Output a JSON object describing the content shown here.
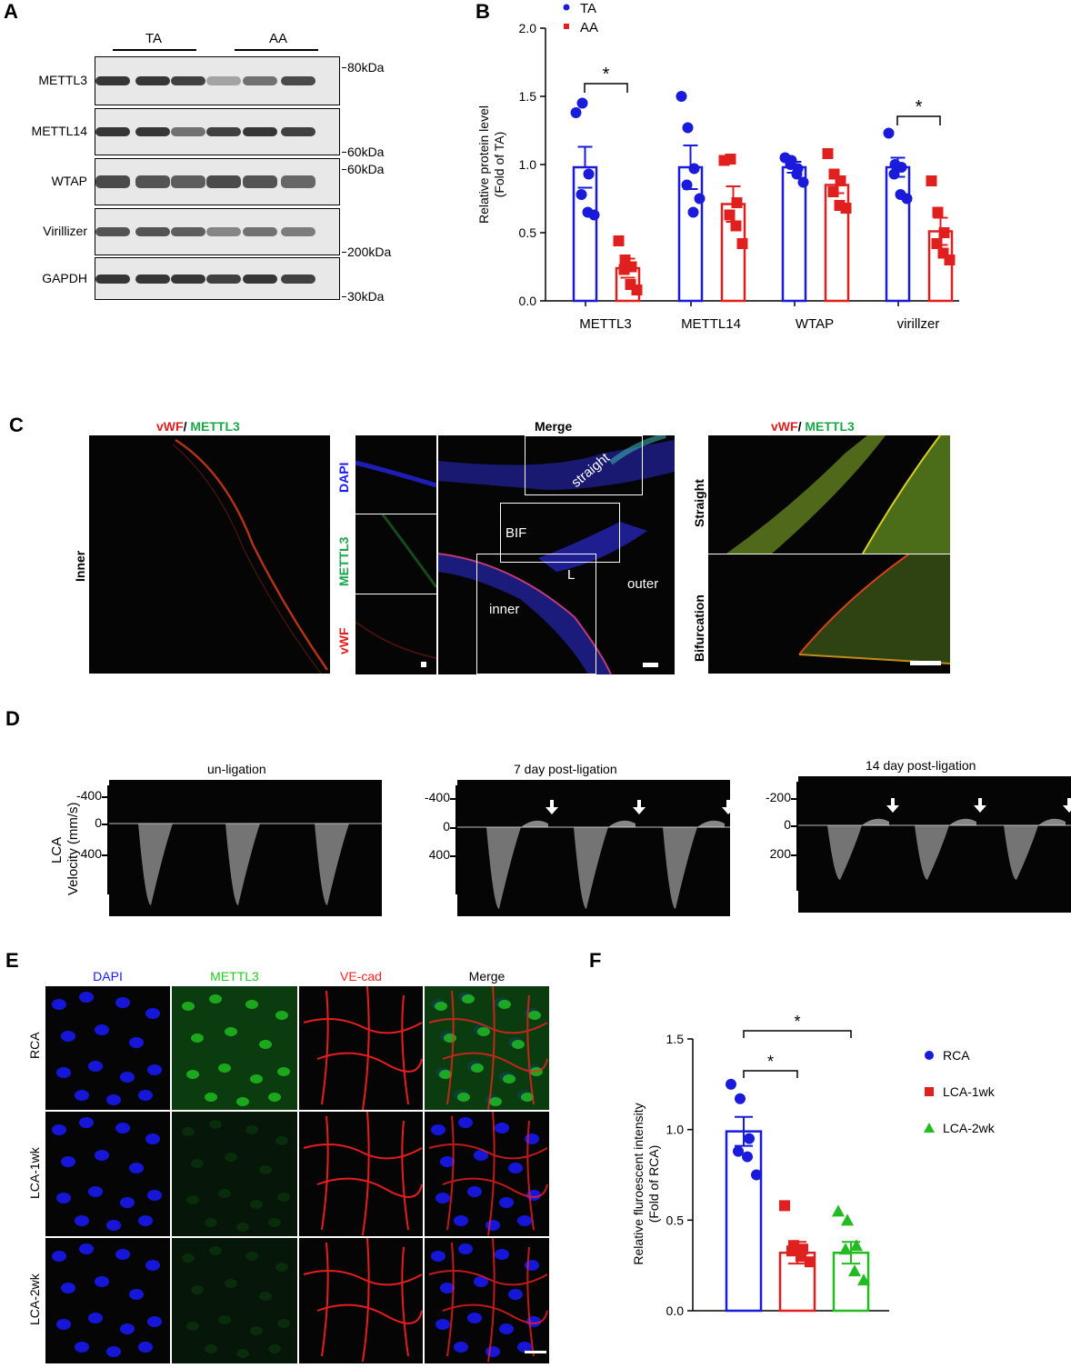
{
  "panels": {
    "A": "A",
    "B": "B",
    "C": "C",
    "D": "D",
    "E": "E",
    "F": "F"
  },
  "panel_a": {
    "groups": [
      "TA",
      "AA"
    ],
    "rows": [
      {
        "label": "METTL3",
        "marker": "80kDa"
      },
      {
        "label": "METTL14",
        "marker": "60kDa"
      },
      {
        "label": "WTAP",
        "marker": "60kDa"
      },
      {
        "label": "Virillizer",
        "marker": "200kDa"
      },
      {
        "label": "GAPDH",
        "marker": "30kDa"
      }
    ]
  },
  "panel_c": {
    "left_title_a": "vWF",
    "left_title_sep": "/ ",
    "left_title_b": "METTL3",
    "merge_title": "Merge",
    "side_label": "Inner",
    "stack_labels": [
      "DAPI",
      "METTL3",
      "vWF"
    ],
    "regions": [
      "straight",
      "BIF",
      "L",
      "inner",
      "outer"
    ],
    "right_title_a": "vWF",
    "right_title_sep": "/ ",
    "right_title_b": "METTL3",
    "right_labels": [
      "Straight",
      "Bifurcation"
    ]
  },
  "panel_d": {
    "titles": [
      "un-ligation",
      "7 day post-ligation",
      "14 day post-ligation"
    ],
    "ylabel_1": "LCA",
    "ylabel_2": "Velocity (mm/s)",
    "ticks_1": [
      "-400",
      "0",
      "400"
    ],
    "ticks_2": [
      "-400",
      "0",
      "400"
    ],
    "ticks_3": [
      "-200",
      "0",
      "200"
    ]
  },
  "panel_e": {
    "columns": [
      "DAPI",
      "METTL3",
      "VE-cad",
      "Merge"
    ],
    "rows": [
      "RCA",
      "LCA-1wk",
      "LCA-2wk"
    ],
    "colors": {
      "dapi": "#1a1aff",
      "mettl3": "#22cc22",
      "vecad": "#ff2020"
    }
  },
  "chart_data": [
    {
      "type": "bar",
      "panel": "B",
      "categories": [
        "METTL3",
        "METTL14",
        "WTAP",
        "virillzer"
      ],
      "series": [
        {
          "name": "TA",
          "color": "#1a1adb",
          "values": [
            0.98,
            0.98,
            0.98,
            0.98
          ],
          "err": [
            0.15,
            0.16,
            0.04,
            0.07
          ],
          "points": [
            [
              1.38,
              1.45,
              0.93,
              0.78,
              0.65,
              0.63
            ],
            [
              1.5,
              1.27,
              0.97,
              0.85,
              0.65,
              0.75
            ],
            [
              1.05,
              1.03,
              0.97,
              1.0,
              0.93,
              0.87
            ],
            [
              1.23,
              1.0,
              0.98,
              0.93,
              0.78,
              0.75
            ]
          ]
        },
        {
          "name": "AA",
          "color": "#e0201f",
          "values": [
            0.24,
            0.71,
            0.85,
            0.51
          ],
          "err": [
            0.07,
            0.13,
            0.06,
            0.1
          ],
          "points": [
            [
              0.44,
              0.3,
              0.25,
              0.23,
              0.12,
              0.08
            ],
            [
              1.03,
              1.04,
              0.72,
              0.63,
              0.55,
              0.42
            ],
            [
              1.08,
              0.93,
              0.88,
              0.8,
              0.7,
              0.68
            ],
            [
              0.88,
              0.65,
              0.5,
              0.42,
              0.35,
              0.3
            ]
          ]
        }
      ],
      "ylabel_1": "Relative protein level",
      "ylabel_2": "(Fold of TA)",
      "yticks": [
        "0.0",
        "0.5",
        "1.0",
        "1.5",
        "2.0"
      ],
      "ylim": [
        0,
        2.0
      ],
      "significance": [
        {
          "category": "METTL3",
          "label": "*"
        },
        {
          "category": "virillzer",
          "label": "*"
        }
      ],
      "legend": "top-left"
    },
    {
      "type": "bar",
      "panel": "F",
      "categories": [
        "RCA",
        "LCA-1wk",
        "LCA-2wk"
      ],
      "series": [
        {
          "name": "RCA",
          "color": "#1a1adb",
          "value": 0.99,
          "err": 0.08,
          "points": [
            1.25,
            1.17,
            0.95,
            0.88,
            0.85,
            0.75
          ]
        },
        {
          "name": "LCA-1wk",
          "color": "#e0201f",
          "value": 0.32,
          "err": 0.06,
          "points": [
            0.58,
            0.36,
            0.34,
            0.33,
            0.3,
            0.27
          ]
        },
        {
          "name": "LCA-2wk",
          "color": "#22bb22",
          "value": 0.32,
          "err": 0.06,
          "points": [
            0.55,
            0.5,
            0.36,
            0.34,
            0.22,
            0.17
          ]
        }
      ],
      "ylabel_1": "Relative fluroescent intensity",
      "ylabel_2": "(Fold of RCA)",
      "yticks": [
        "0.0",
        "0.5",
        "1.0",
        "1.5"
      ],
      "ylim": [
        0,
        1.5
      ],
      "significance": [
        {
          "from": "RCA",
          "to": "LCA-1wk",
          "label": "*"
        },
        {
          "from": "RCA",
          "to": "LCA-2wk",
          "label": "*"
        }
      ],
      "legend": "right"
    }
  ]
}
